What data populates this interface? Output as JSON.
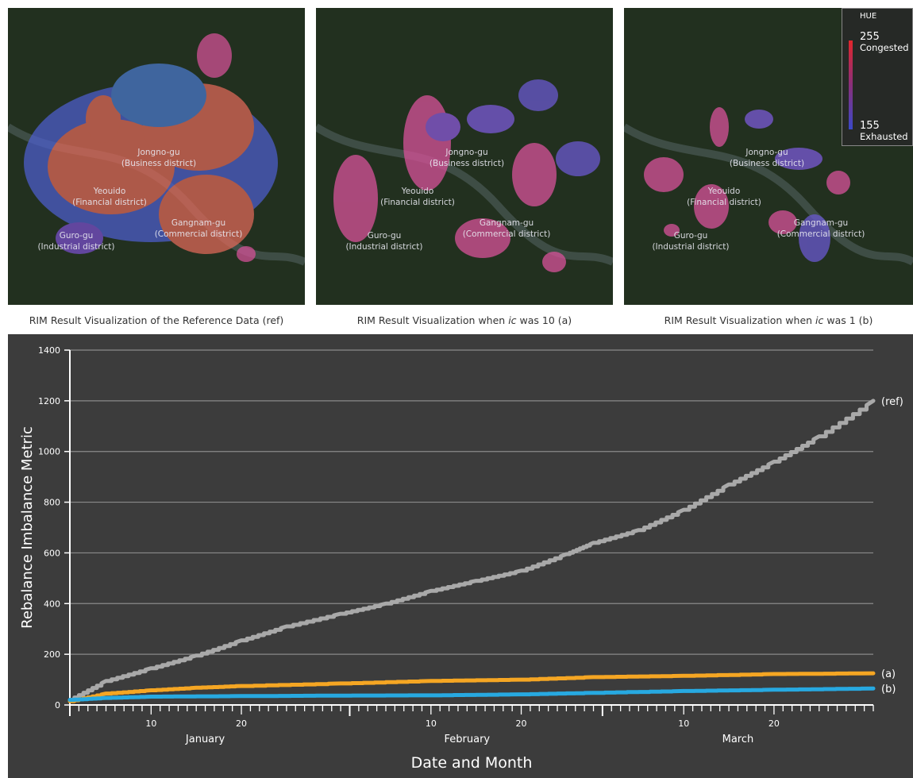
{
  "maps": [
    {
      "caption_pre": "RIM Result Visualization of the Reference Data (ref)",
      "caption_ic": "",
      "caption_post": "",
      "labels": {
        "jongno_name": "Jongno-gu",
        "jongno_desc": "(Business district)",
        "yeouido_name": "Yeouido",
        "yeouido_desc": "(Financial district)",
        "gangnam_name": "Gangnam-gu",
        "gangnam_desc": "(Commercial district)",
        "guro_name": "Guro-gu",
        "guro_desc": "(Industrial district)"
      }
    },
    {
      "caption_pre": "RIM Result Visualization when ",
      "caption_ic": "ic",
      "caption_post": " was 10 (a)",
      "labels": {
        "jongno_name": "Jongno-gu",
        "jongno_desc": "(Business district)",
        "yeouido_name": "Yeouido",
        "yeouido_desc": "(Financial district)",
        "gangnam_name": "Gangnam-gu",
        "gangnam_desc": "(Commercial district)",
        "guro_name": "Guro-gu",
        "guro_desc": "(Industrial district)"
      }
    },
    {
      "caption_pre": "RIM Result Visualization when ",
      "caption_ic": "ic",
      "caption_post": " was 1 (b)",
      "labels": {
        "jongno_name": "Jongno-gu",
        "jongno_desc": "(Business district)",
        "yeouido_name": "Yeouido",
        "yeouido_desc": "(Financial district)",
        "gangnam_name": "Gangnam-gu",
        "gangnam_desc": "(Commercial district)",
        "guro_name": "Guro-gu",
        "guro_desc": "(Industrial district)"
      }
    }
  ],
  "hue_legend": {
    "title": "HUE",
    "high_value": "255",
    "high_label": "Congested",
    "low_value": "155",
    "low_label": "Exhausted",
    "high_color": "#e2262c",
    "low_color": "#3a48c8"
  },
  "chart_data": {
    "type": "line",
    "xlabel": "Date and Month",
    "ylabel": "Rebalance Imbalance Metric",
    "ylim": [
      0,
      1400
    ],
    "yticks": [
      0,
      200,
      400,
      600,
      800,
      1000,
      1200,
      1400
    ],
    "xlim": [
      "2014-01-01",
      "2014-03-31"
    ],
    "x_day_ticks": [
      "10",
      "20",
      "10",
      "20",
      "10",
      "20"
    ],
    "x_day_tick_dates": [
      "2014-01-10",
      "2014-01-20",
      "2014-02-10",
      "2014-02-20",
      "2014-03-10",
      "2014-03-20"
    ],
    "months": [
      {
        "label": "January",
        "date": "2014-01-16"
      },
      {
        "label": "February",
        "date": "2014-02-14"
      },
      {
        "label": "March",
        "date": "2014-03-16"
      }
    ],
    "grid": true,
    "series": [
      {
        "name": "(ref)",
        "color": "#a9a9a9",
        "x": [
          "2014-01-01",
          "2014-01-05",
          "2014-01-10",
          "2014-01-15",
          "2014-01-20",
          "2014-01-25",
          "2014-01-31",
          "2014-02-05",
          "2014-02-10",
          "2014-02-15",
          "2014-02-20",
          "2014-02-25",
          "2014-02-28",
          "2014-03-05",
          "2014-03-10",
          "2014-03-15",
          "2014-03-20",
          "2014-03-25",
          "2014-03-31"
        ],
        "values": [
          20,
          95,
          145,
          195,
          255,
          310,
          360,
          400,
          450,
          490,
          530,
          595,
          640,
          690,
          770,
          870,
          960,
          1060,
          1200
        ]
      },
      {
        "name": "(a)",
        "color": "#f5a623",
        "x": [
          "2014-01-01",
          "2014-01-05",
          "2014-01-10",
          "2014-01-15",
          "2014-01-20",
          "2014-01-31",
          "2014-02-10",
          "2014-02-20",
          "2014-02-28",
          "2014-03-10",
          "2014-03-20",
          "2014-03-31"
        ],
        "values": [
          15,
          45,
          58,
          68,
          75,
          85,
          95,
          100,
          110,
          115,
          122,
          125
        ]
      },
      {
        "name": "(b)",
        "color": "#27a9e1",
        "x": [
          "2014-01-01",
          "2014-01-05",
          "2014-01-10",
          "2014-01-20",
          "2014-01-31",
          "2014-02-10",
          "2014-02-20",
          "2014-02-28",
          "2014-03-10",
          "2014-03-20",
          "2014-03-31"
        ],
        "values": [
          20,
          28,
          33,
          35,
          37,
          38,
          42,
          48,
          55,
          60,
          65
        ]
      }
    ]
  }
}
